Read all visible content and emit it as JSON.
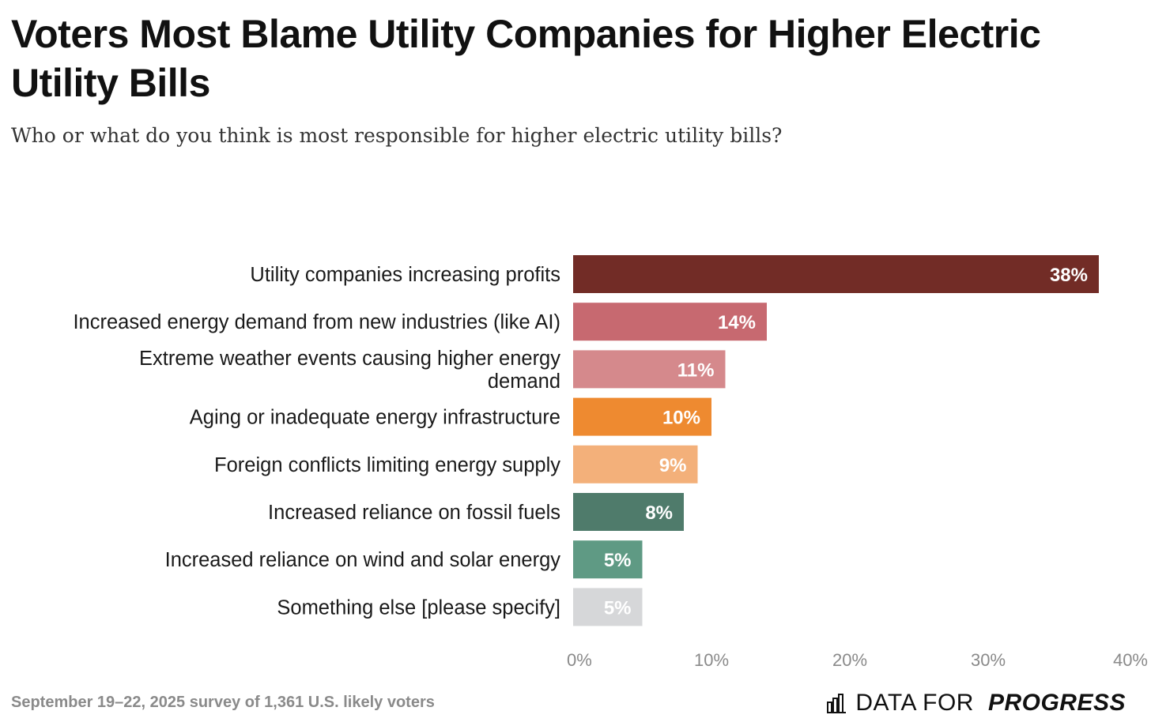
{
  "title": "Voters Most Blame Utility Companies for Higher Electric Utility Bills",
  "subtitle": "Who or what do you think is most responsible for higher electric utility bills?",
  "footer": {
    "source": "September 19–22, 2025 survey of 1,361 U.S. likely voters",
    "brand_part1": "DATA FOR",
    "brand_part2": "PROGRESS",
    "brand_icon": "bar-chart-icon"
  },
  "chart_data": {
    "type": "bar",
    "orientation": "horizontal",
    "title": "Voters Most Blame Utility Companies for Higher Electric Utility Bills",
    "subtitle": "Who or what do you think is most responsible for higher electric utility bills?",
    "xlabel": "",
    "ylabel": "",
    "xlim": [
      0,
      40
    ],
    "xticks": [
      "0%",
      "10%",
      "20%",
      "30%",
      "40%"
    ],
    "grid": false,
    "categories": [
      [
        "Utility companies increasing profits"
      ],
      [
        "Increased energy demand from new industries (like AI)"
      ],
      [
        "Extreme weather events causing higher energy",
        "demand"
      ],
      [
        "Aging or inadequate energy infrastructure"
      ],
      [
        "Foreign conflicts limiting energy supply"
      ],
      [
        "Increased reliance on fossil fuels"
      ],
      [
        "Increased reliance on wind and solar energy"
      ],
      [
        "Something else [please specify]"
      ]
    ],
    "values": [
      38,
      14,
      11,
      10,
      9,
      8,
      5,
      5
    ],
    "value_labels": [
      "38%",
      "14%",
      "11%",
      "10%",
      "9%",
      "8%",
      "5%",
      "5%"
    ],
    "colors": [
      "#722c26",
      "#c76970",
      "#d5898c",
      "#ee8a30",
      "#f3b07a",
      "#4f7b6b",
      "#5f9a84",
      "#d6d7d9"
    ]
  }
}
